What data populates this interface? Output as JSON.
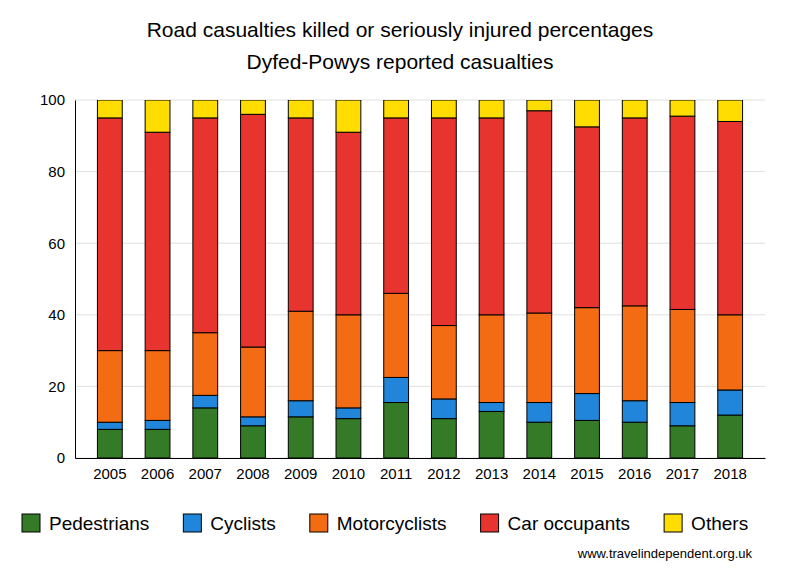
{
  "chart_data": {
    "type": "bar",
    "stacked": true,
    "title": "Road casualties killed or seriously injured percentages",
    "subtitle": "Dyfed-Powys reported casualties",
    "annotations": [
      "www.travelindependent.org.uk"
    ],
    "categories": [
      "2005",
      "2006",
      "2007",
      "2008",
      "2009",
      "2010",
      "2011",
      "2012",
      "2013",
      "2014",
      "2015",
      "2016",
      "2017",
      "2018"
    ],
    "series": [
      {
        "name": "Pedestrians",
        "color": "#357a26",
        "values": [
          8,
          8,
          14,
          9,
          11.5,
          11,
          15.5,
          11,
          13,
          10,
          10.5,
          10,
          9,
          12
        ]
      },
      {
        "name": "Cyclists",
        "color": "#2185d9",
        "values": [
          2,
          2.5,
          3.5,
          2.5,
          4.5,
          3,
          7,
          5.5,
          2.5,
          5.5,
          7.5,
          6,
          6.5,
          7
        ]
      },
      {
        "name": "Motorcyclists",
        "color": "#f36b12",
        "values": [
          20,
          19.5,
          17.5,
          19.5,
          25,
          26,
          23.5,
          20.5,
          24.5,
          25,
          24,
          26.5,
          26,
          21
        ]
      },
      {
        "name": "Car occupants",
        "color": "#e8342f",
        "values": [
          65,
          61,
          60,
          65,
          54,
          51,
          49,
          58,
          55,
          56.5,
          50.5,
          52.5,
          54,
          54
        ]
      },
      {
        "name": "Others",
        "color": "#ffdd00",
        "values": [
          5,
          9,
          5,
          4,
          5,
          9,
          5,
          5,
          5,
          3,
          7.5,
          5,
          4.5,
          6
        ]
      }
    ],
    "ylim": [
      0,
      100
    ],
    "yticks": [
      0,
      20,
      40,
      60,
      80,
      100
    ],
    "grid": true,
    "legend": "bottom"
  }
}
